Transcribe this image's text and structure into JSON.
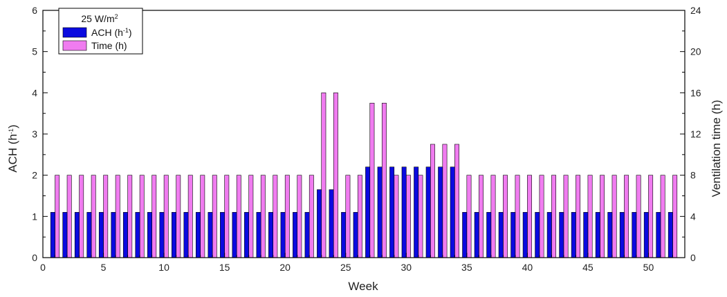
{
  "chart_data": {
    "type": "bar",
    "xlabel": "Week",
    "ylabel_left": "ACH (h",
    "ylabel_left_sup": "-1",
    "ylabel_left_close": ")",
    "ylabel_right": "Ventilation time (h)",
    "xlim": [
      0,
      53
    ],
    "ylim_left": [
      0,
      6
    ],
    "ylim_right": [
      0,
      24
    ],
    "xticks": [
      0,
      5,
      10,
      15,
      20,
      25,
      30,
      35,
      40,
      45,
      50
    ],
    "yticks_left": [
      0,
      1,
      2,
      3,
      4,
      5,
      6
    ],
    "yticks_right": [
      0,
      4,
      8,
      12,
      16,
      20,
      24
    ],
    "legend": {
      "title": "25 W/m",
      "title_sup": "2",
      "placement": "top-left",
      "entries": [
        {
          "label": "ACH (h",
          "label_sup": "-1",
          "label_close": ")",
          "color": "#0a0adf"
        },
        {
          "label": "Time (h)",
          "label_sup": "",
          "label_close": "",
          "color": "#f07cf0"
        }
      ]
    },
    "categories": [
      1,
      2,
      3,
      4,
      5,
      6,
      7,
      8,
      9,
      10,
      11,
      12,
      13,
      14,
      15,
      16,
      17,
      18,
      19,
      20,
      21,
      22,
      23,
      24,
      25,
      26,
      27,
      28,
      29,
      30,
      31,
      32,
      33,
      34,
      35,
      36,
      37,
      38,
      39,
      40,
      41,
      42,
      43,
      44,
      45,
      46,
      47,
      48,
      49,
      50,
      51,
      52
    ],
    "series": [
      {
        "name": "ACH (h-1)",
        "axis": "left",
        "color": "#0a0adf",
        "values": [
          1.1,
          1.1,
          1.1,
          1.1,
          1.1,
          1.1,
          1.1,
          1.1,
          1.1,
          1.1,
          1.1,
          1.1,
          1.1,
          1.1,
          1.1,
          1.1,
          1.1,
          1.1,
          1.1,
          1.1,
          1.1,
          1.1,
          1.65,
          1.65,
          1.1,
          1.1,
          2.2,
          2.2,
          2.2,
          2.2,
          2.2,
          2.2,
          2.2,
          2.2,
          1.1,
          1.1,
          1.1,
          1.1,
          1.1,
          1.1,
          1.1,
          1.1,
          1.1,
          1.1,
          1.1,
          1.1,
          1.1,
          1.1,
          1.1,
          1.1,
          1.1,
          1.1
        ]
      },
      {
        "name": "Time (h)",
        "axis": "right",
        "color": "#f07cf0",
        "values": [
          8,
          8,
          8,
          8,
          8,
          8,
          8,
          8,
          8,
          8,
          8,
          8,
          8,
          8,
          8,
          8,
          8,
          8,
          8,
          8,
          8,
          8,
          16,
          16,
          8,
          8,
          15,
          15,
          8,
          8,
          8,
          11,
          11,
          11,
          8,
          8,
          8,
          8,
          8,
          8,
          8,
          8,
          8,
          8,
          8,
          8,
          8,
          8,
          8,
          8,
          8,
          8
        ]
      }
    ]
  }
}
